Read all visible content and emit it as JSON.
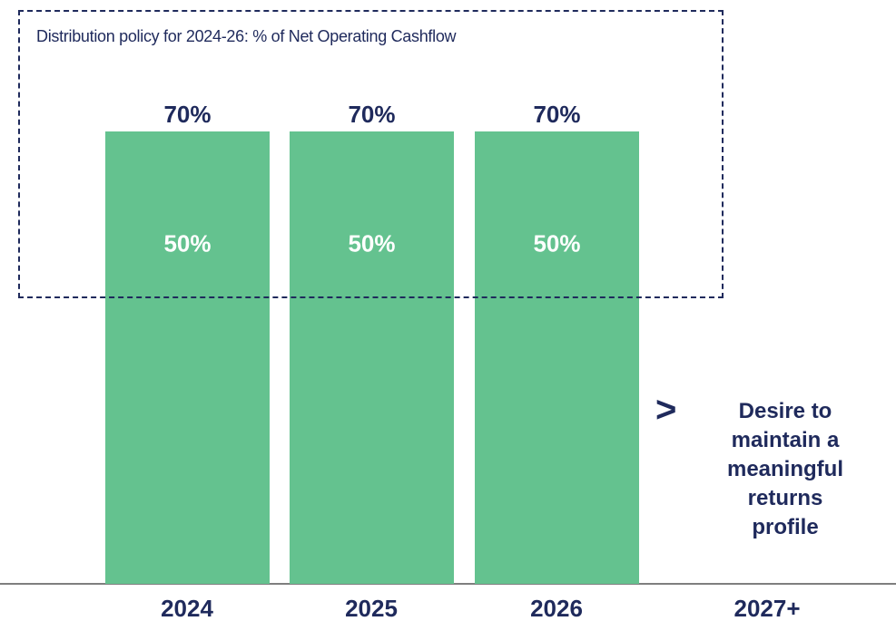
{
  "chart_data": {
    "type": "bar",
    "title": "Distribution policy for 2024-26: % of Net Operating Cashflow",
    "categories": [
      "2024",
      "2025",
      "2026",
      "2027+"
    ],
    "series": [
      {
        "values": [
          50,
          50,
          50,
          null
        ]
      },
      {
        "values": [
          70,
          70,
          70,
          null
        ]
      }
    ],
    "data_labels": {
      "top": [
        "70%",
        "70%",
        "70%"
      ],
      "inner": [
        "50%",
        "50%",
        "50%"
      ]
    },
    "annotation": {
      "arrow": ">",
      "lines": [
        "Desire to",
        "maintain a",
        "meaningful",
        "returns",
        "profile"
      ]
    },
    "colors": {
      "bar": "#64c28f",
      "text": "#1f2a5c",
      "axis": "#333333",
      "inner_label": "#ffffff"
    },
    "ylim": [
      0,
      70
    ],
    "grid": false,
    "legend": "none"
  }
}
